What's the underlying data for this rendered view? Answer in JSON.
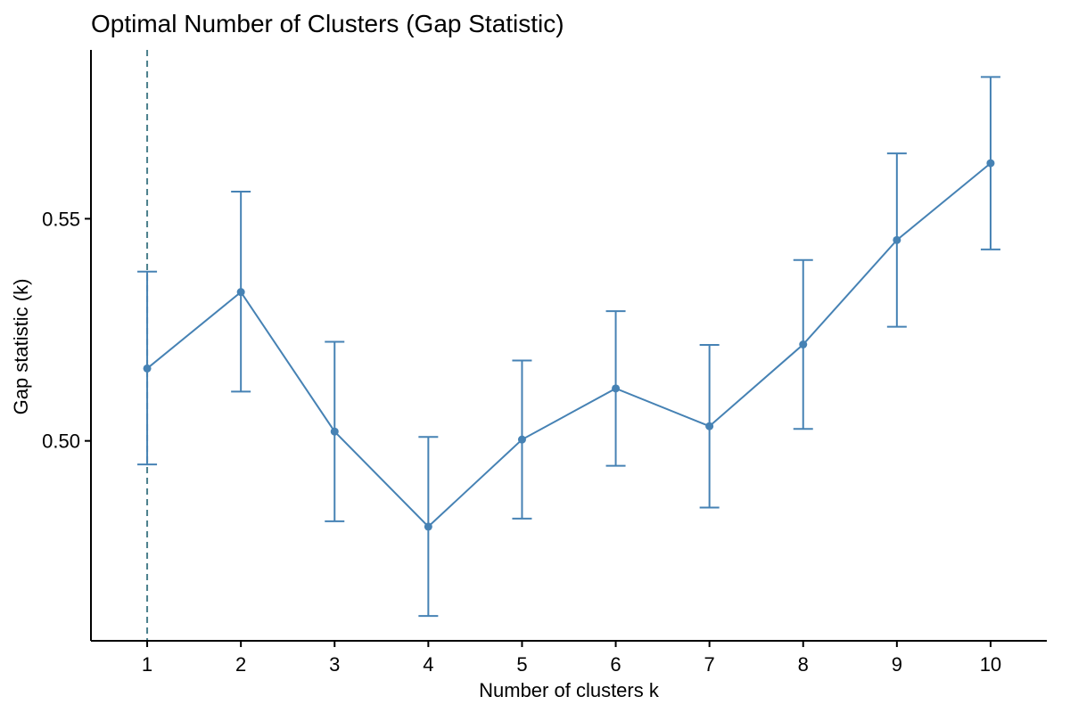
{
  "chart_data": {
    "type": "line",
    "title": "Optimal Number of Clusters (Gap Statistic)",
    "xlabel": "Number of clusters k",
    "ylabel": "Gap statistic (k)",
    "x": [
      1,
      2,
      3,
      4,
      5,
      6,
      7,
      8,
      9,
      10
    ],
    "x_tick_labels": [
      "1",
      "2",
      "3",
      "4",
      "5",
      "6",
      "7",
      "8",
      "9",
      "10"
    ],
    "y_ticks": [
      0.5,
      0.55
    ],
    "y_tick_labels": [
      "0.50",
      "0.55"
    ],
    "xlim": [
      0.4,
      10.6
    ],
    "ylim": [
      0.455,
      0.588
    ],
    "grid": false,
    "legend": "none",
    "optimal_k": 1,
    "series": [
      {
        "values": [
          0.5163,
          0.5335,
          0.5021,
          0.4807,
          0.5003,
          0.5118,
          0.5033,
          0.5217,
          0.5452,
          0.5625
        ],
        "error_lower": [
          0.4947,
          0.5111,
          0.4819,
          0.4606,
          0.4825,
          0.4944,
          0.485,
          0.5027,
          0.5257,
          0.5431
        ],
        "error_upper": [
          0.5381,
          0.5561,
          0.5223,
          0.5009,
          0.5181,
          0.5292,
          0.5216,
          0.5407,
          0.5647,
          0.5819
        ]
      }
    ],
    "colors": {
      "series": "#4682B4",
      "vline": "#4a7f8c",
      "axis": "#000000"
    }
  }
}
